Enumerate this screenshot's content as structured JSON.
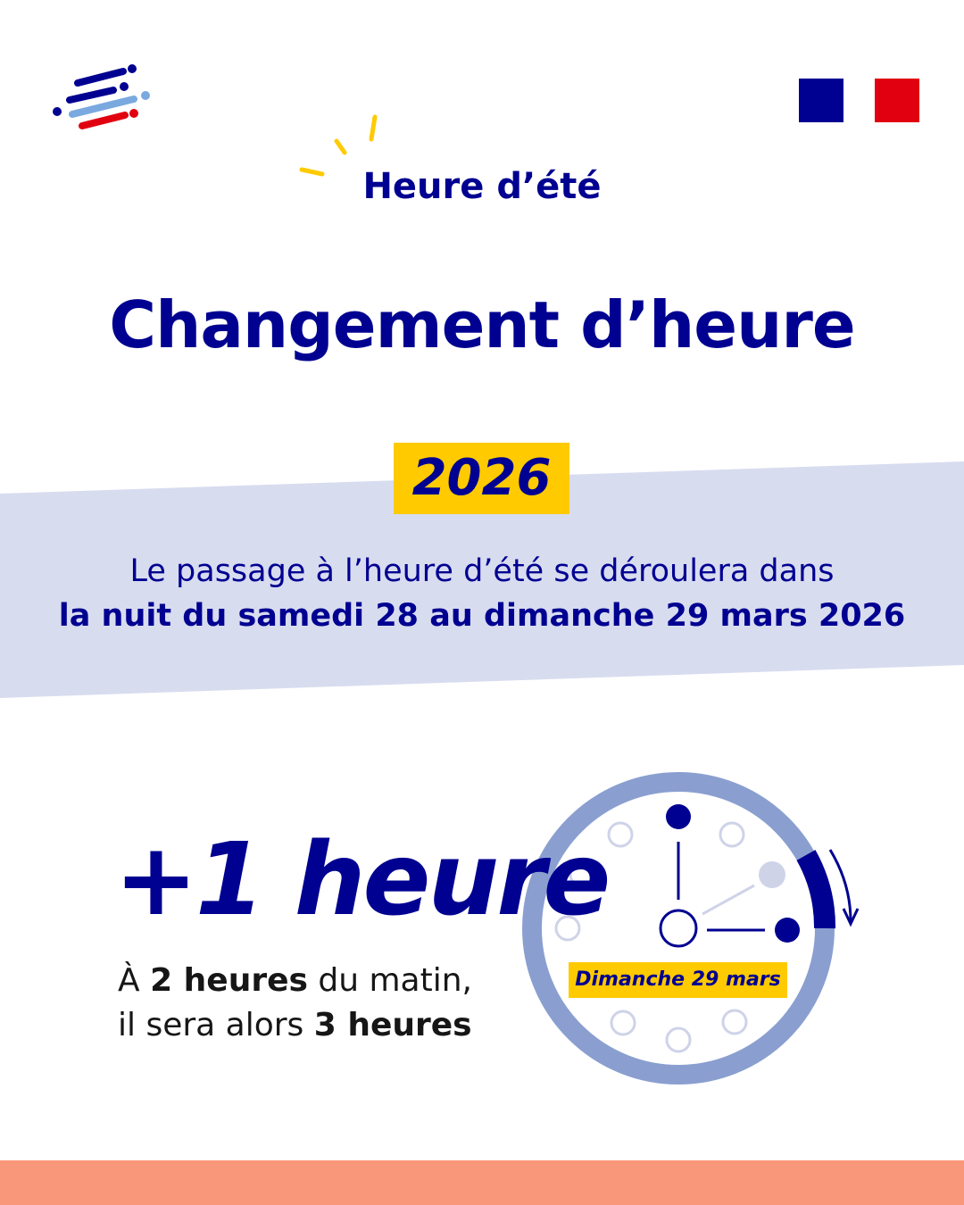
{
  "header": {
    "kicker": "Heure d’été"
  },
  "title": "Changement d’heure",
  "year": "2026",
  "announcement": {
    "line1": "Le passage à l’heure d’été se déroulera dans",
    "line2": "la nuit du samedi 28 au dimanche 29 mars 2026"
  },
  "change": {
    "headline": "+1 heure",
    "text_a": "À ",
    "text_b": "2 heures",
    "text_c": " du matin,",
    "text_d": "il sera alors ",
    "text_e": "3 heures"
  },
  "clock": {
    "label": "Dimanche 29 mars",
    "from_hour": 2,
    "to_hour": 3
  },
  "colors": {
    "blue": "#000091",
    "yellow": "#ffca00",
    "band": "#d8dcef",
    "ring": "#8a9fd0",
    "footer": "#f9977a",
    "red": "#e1000f"
  },
  "logos": {
    "left": "gouvernement-logo",
    "right": "marianne-flag-logo"
  }
}
